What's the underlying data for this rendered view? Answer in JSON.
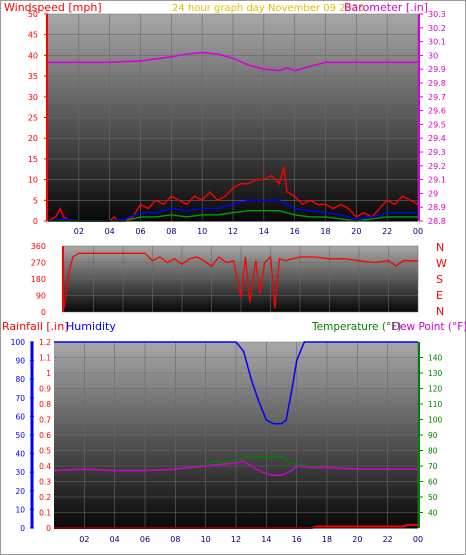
{
  "header": {
    "wind_label": "Windspeed [mph]",
    "center_label": "24 hour graph day   November 09 2025",
    "baro_label": "Barometer [.in]"
  },
  "colors": {
    "background": "#ffffff",
    "border": "#9a9a9a",
    "wind": "#ff0000",
    "gust": "#ff0000",
    "avg_wind": "#0000ff",
    "min_wind": "#00a000",
    "barometer": "#d800d8",
    "direction": "#ff0000",
    "rain": "#ff0000",
    "humidity": "#0000ff",
    "temperature": "#008000",
    "dewpoint": "#d000d0",
    "plot_top": "#a8a8a8",
    "plot_bottom": "#080808"
  },
  "time_ticks": [
    "02",
    "04",
    "06",
    "08",
    "10",
    "12",
    "14",
    "16",
    "18",
    "20",
    "22",
    "00"
  ],
  "compass": [
    "N",
    "W",
    "S",
    "E",
    "N"
  ],
  "chart_data": [
    {
      "type": "line",
      "id": "wind",
      "x_unit": "hour",
      "xlim": [
        0,
        24
      ],
      "ylim": [
        0,
        50
      ],
      "yticks": [
        0,
        5,
        10,
        15,
        20,
        25,
        30,
        35,
        40,
        45,
        50
      ],
      "ylabel": "Windspeed [mph]",
      "y2label": "Barometer [.in]",
      "y2lim": [
        28.8,
        30.3
      ],
      "y2ticks": [
        "28.8",
        "28.9",
        "29",
        "29.1",
        "29.2",
        "29.3",
        "29.4",
        "29.5",
        "29.6",
        "29.7",
        "29.8",
        "29.9",
        "30",
        "30.1",
        "30.2",
        "30.3"
      ],
      "series": [
        {
          "name": "Barometer",
          "axis": "y2",
          "x": [
            0,
            2,
            4,
            6,
            8,
            9,
            10,
            11,
            12,
            13,
            14,
            15,
            15.5,
            16,
            17,
            18,
            20,
            22,
            24
          ],
          "y": [
            29.95,
            29.95,
            29.95,
            29.96,
            29.99,
            30.01,
            30.02,
            30.01,
            29.98,
            29.93,
            29.9,
            29.89,
            29.91,
            29.89,
            29.92,
            29.95,
            29.95,
            29.95,
            29.95
          ]
        },
        {
          "name": "Gust",
          "x": [
            0,
            0.5,
            0.8,
            1,
            1.5,
            2,
            3,
            4,
            4.3,
            4.5,
            5,
            5.5,
            6,
            6.5,
            7,
            7.5,
            8,
            8.5,
            9,
            9.5,
            10,
            10.5,
            11,
            11.5,
            12,
            12.5,
            13,
            13.5,
            14,
            14.5,
            15,
            15.3,
            15.5,
            16,
            16.5,
            17,
            17.5,
            18,
            18.5,
            19,
            19.5,
            20,
            20.5,
            21,
            21.5,
            22,
            22.5,
            23,
            23.5,
            24
          ],
          "y": [
            0,
            1,
            3,
            1,
            0,
            0,
            0,
            0,
            1,
            0,
            0,
            1,
            4,
            3,
            5,
            4,
            6,
            5,
            4,
            6,
            5,
            7,
            5,
            6,
            8,
            9,
            9,
            10,
            10,
            11,
            9,
            13,
            7,
            6,
            4,
            5,
            4,
            4,
            3,
            4,
            3,
            1,
            2,
            1,
            3,
            5,
            4,
            6,
            5,
            4
          ]
        },
        {
          "name": "Wind",
          "x": [
            0,
            1,
            2,
            3,
            4,
            5,
            6,
            7,
            8,
            9,
            10,
            11,
            12,
            13,
            14,
            15,
            16,
            17,
            18,
            19,
            20,
            21,
            22,
            23,
            24
          ],
          "y": [
            0,
            0.5,
            0,
            0,
            0,
            0.5,
            2,
            2,
            3,
            2.5,
            3,
            3,
            4,
            5,
            5,
            5,
            3,
            2.5,
            2,
            1.5,
            0.5,
            1,
            2,
            2,
            2
          ]
        },
        {
          "name": "Min wind",
          "x": [
            0,
            1,
            2,
            3,
            4,
            5,
            6,
            7,
            8,
            9,
            10,
            11,
            12,
            13,
            14,
            15,
            16,
            17,
            18,
            19,
            20,
            21,
            22,
            23,
            24
          ],
          "y": [
            0,
            0,
            0,
            0,
            0,
            0,
            1,
            1,
            1.5,
            1,
            1.5,
            1.5,
            2,
            2.5,
            2.5,
            2.5,
            1.5,
            1,
            1,
            0.5,
            0,
            0.5,
            1,
            1,
            1
          ]
        }
      ]
    },
    {
      "type": "line",
      "id": "direction",
      "x_unit": "hour",
      "xlim": [
        0,
        24
      ],
      "ylim": [
        0,
        360
      ],
      "yticks": [
        0,
        90,
        180,
        270,
        360
      ],
      "ytick_labels": [
        "0",
        "90",
        "180",
        "270",
        "360"
      ],
      "series": [
        {
          "name": "Direction",
          "x": [
            0,
            0.3,
            0.6,
            1,
            2,
            3,
            4,
            5,
            5.5,
            6,
            6.5,
            7,
            7.5,
            8,
            8.5,
            9,
            9.5,
            10,
            10.5,
            11,
            11.5,
            12,
            12.3,
            12.6,
            13,
            13.3,
            13.6,
            14,
            14.3,
            14.6,
            15,
            15.5,
            16,
            17,
            18,
            19,
            20,
            21,
            22,
            22.5,
            23,
            24
          ],
          "y": [
            20,
            200,
            300,
            320,
            320,
            320,
            320,
            320,
            320,
            280,
            300,
            270,
            290,
            260,
            290,
            300,
            280,
            250,
            300,
            270,
            280,
            80,
            300,
            50,
            280,
            100,
            270,
            300,
            20,
            290,
            280,
            290,
            300,
            300,
            290,
            290,
            280,
            270,
            280,
            250,
            280,
            280
          ]
        }
      ]
    },
    {
      "type": "line",
      "id": "rain_hum_temp",
      "x_unit": "hour",
      "xlim": [
        0,
        24
      ],
      "ylabel": "Rainfall [.in]",
      "y2label": "Temperature (°F)",
      "y3label": "Dew Point (°F)",
      "humidity_label": "Humidity",
      "ylim": [
        0,
        1.2
      ],
      "yticks": [
        "0",
        "0.1",
        "0.2",
        "0.3",
        "0.4",
        "0.5",
        "0.6",
        "0.7",
        "0.8",
        "0.9",
        "1",
        "1.1",
        "1.2"
      ],
      "y2lim": [
        30,
        150
      ],
      "y2ticks": [
        "40",
        "50",
        "60",
        "70",
        "80",
        "90",
        "100",
        "110",
        "120",
        "130",
        "140"
      ],
      "humidity_lim": [
        0,
        100
      ],
      "humidity_ticks": [
        "0",
        "10",
        "20",
        "30",
        "40",
        "50",
        "60",
        "70",
        "80",
        "90",
        "100"
      ],
      "series": [
        {
          "name": "Humidity",
          "axis": "humidity",
          "x": [
            0,
            2,
            4,
            6,
            8,
            10,
            12,
            12.5,
            13,
            13.5,
            14,
            14.5,
            15,
            15.3,
            15.7,
            16,
            16.5,
            18,
            20,
            22,
            24
          ],
          "y": [
            100,
            100,
            100,
            100,
            100,
            100,
            100,
            95,
            80,
            68,
            58,
            56,
            56,
            58,
            75,
            90,
            100,
            100,
            100,
            100,
            100
          ]
        },
        {
          "name": "Temperature",
          "axis": "y2",
          "x": [
            0,
            2,
            4,
            6,
            8,
            9,
            10,
            10.5,
            11,
            12,
            12.5,
            13,
            14,
            15,
            15.5,
            16,
            17,
            18,
            20,
            22,
            24
          ],
          "y": [
            67,
            68,
            67,
            67,
            68,
            69,
            71,
            73,
            72,
            74,
            75,
            76,
            76,
            76,
            72,
            71,
            70,
            69,
            68,
            68,
            68
          ]
        },
        {
          "name": "Dew Point",
          "axis": "y2",
          "x": [
            0,
            2,
            4,
            6,
            8,
            9,
            10,
            11,
            12,
            12.5,
            13,
            13.5,
            14,
            14.5,
            15,
            15.5,
            16,
            17,
            18,
            20,
            22,
            24
          ],
          "y": [
            67,
            68,
            67,
            67,
            68,
            69,
            70,
            71,
            72,
            73,
            70,
            67,
            65,
            64,
            64,
            66,
            70,
            69,
            69,
            68,
            68,
            68
          ]
        },
        {
          "name": "Rainfall",
          "axis": "y",
          "x": [
            0,
            1,
            2,
            3,
            4,
            5,
            6,
            7,
            8,
            9,
            10,
            11,
            12,
            13,
            14,
            15,
            16,
            17,
            17.3,
            18,
            19,
            20,
            21,
            22,
            23,
            23.3,
            24
          ],
          "y": [
            0,
            0,
            0,
            0,
            0,
            0,
            0,
            0,
            0,
            0,
            0,
            0,
            0,
            0,
            0,
            0,
            0,
            0,
            0.01,
            0.01,
            0.01,
            0.01,
            0.01,
            0.01,
            0.01,
            0.02,
            0.02
          ]
        }
      ]
    }
  ]
}
